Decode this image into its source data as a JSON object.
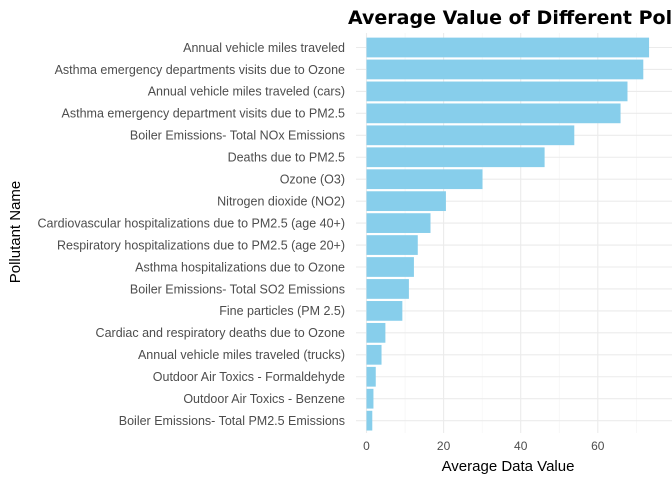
{
  "chart_data": {
    "type": "bar",
    "orientation": "horizontal",
    "title": "Average Value of Different Pollutants",
    "xlabel": "Average Data Value",
    "ylabel": "Pollutant Name",
    "xlim": [
      0,
      75
    ],
    "xticks": [
      0,
      20,
      40,
      60
    ],
    "grid": true,
    "bar_color": "#87CEEB",
    "categories": [
      "Annual vehicle miles traveled",
      "Asthma emergency departments visits due to Ozone",
      "Annual vehicle miles traveled (cars)",
      "Asthma emergency department visits due to PM2.5",
      "Boiler Emissions- Total NOx Emissions",
      "Deaths due to PM2.5",
      "Ozone (O3)",
      "Nitrogen dioxide (NO2)",
      "Cardiovascular hospitalizations due to PM2.5 (age 40+)",
      "Respiratory hospitalizations due to PM2.5 (age 20+)",
      "Asthma hospitalizations due to Ozone",
      "Boiler Emissions- Total SO2 Emissions",
      "Fine particles (PM 2.5)",
      "Cardiac and respiratory deaths due to Ozone",
      "Annual vehicle miles traveled (trucks)",
      "Outdoor Air Toxics - Formaldehyde",
      "Outdoor Air Toxics - Benzene",
      "Boiler Emissions- Total PM2.5 Emissions"
    ],
    "values": [
      73.3,
      71.8,
      67.7,
      65.9,
      53.9,
      46.2,
      30.1,
      20.6,
      16.6,
      13.3,
      12.3,
      11.0,
      9.3,
      4.9,
      3.9,
      2.4,
      1.8,
      1.5
    ]
  }
}
